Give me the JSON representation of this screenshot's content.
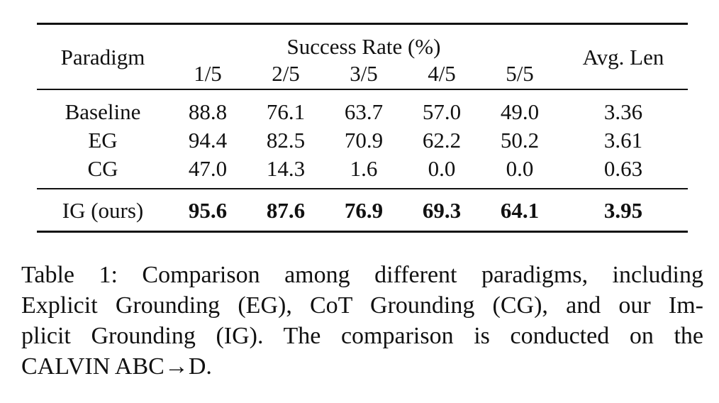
{
  "table": {
    "headers": {
      "paradigm": "Paradigm",
      "success_rate": "Success Rate (%)",
      "sub": [
        "1/5",
        "2/5",
        "3/5",
        "4/5",
        "5/5"
      ],
      "avg_len": "Avg. Len"
    },
    "rows": [
      {
        "paradigm": "Baseline",
        "values": [
          "88.8",
          "76.1",
          "63.7",
          "57.0",
          "49.0"
        ],
        "avg_len": "3.36"
      },
      {
        "paradigm": "EG",
        "values": [
          "94.4",
          "82.5",
          "70.9",
          "62.2",
          "50.2"
        ],
        "avg_len": "3.61"
      },
      {
        "paradigm": "CG",
        "values": [
          "47.0",
          "14.3",
          "1.6",
          "0.0",
          "0.0"
        ],
        "avg_len": "0.63"
      }
    ],
    "ours": {
      "paradigm": "IG (ours)",
      "values": [
        "95.6",
        "87.6",
        "76.9",
        "69.3",
        "64.1"
      ],
      "avg_len": "3.95"
    }
  },
  "caption": {
    "lines": [
      "Table 1: Comparison among different paradigms, including",
      "Explicit Grounding (EG), CoT Grounding (CG), and our Im-",
      "plicit Grounding (IG). The comparison is conducted on the",
      "CALVIN ABC→D."
    ]
  }
}
